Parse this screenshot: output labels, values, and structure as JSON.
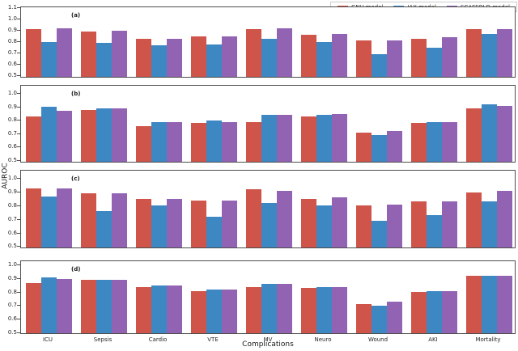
{
  "figure": {
    "xlabel": "Complications",
    "ylabel": "AUROC",
    "legend": [
      {
        "label": "GNV model",
        "color": "#cf5449"
      },
      {
        "label": "JAX model",
        "color": "#3d87c3"
      },
      {
        "label": "SCAFFOLD model",
        "color": "#9263b3"
      }
    ]
  },
  "chart_data": [
    {
      "type": "bar",
      "panel_label": "(a)",
      "categories": [
        "ICU",
        "Sepsis",
        "Cardio",
        "VTE",
        "MV",
        "Neuro",
        "Wound",
        "AKI",
        "Mortality"
      ],
      "series": [
        {
          "name": "GNV model",
          "color": "#cf5449",
          "values": [
            0.9,
            0.88,
            0.82,
            0.84,
            0.9,
            0.85,
            0.8,
            0.82,
            0.9
          ]
        },
        {
          "name": "JAX model",
          "color": "#3d87c3",
          "values": [
            0.79,
            0.78,
            0.76,
            0.77,
            0.82,
            0.79,
            0.68,
            0.74,
            0.86
          ]
        },
        {
          "name": "SCAFFOLD model",
          "color": "#9263b3",
          "values": [
            0.91,
            0.89,
            0.82,
            0.84,
            0.91,
            0.86,
            0.8,
            0.83,
            0.9
          ]
        }
      ],
      "ylabel": "AUROC",
      "yticks": [
        1.1,
        1.0,
        0.9,
        0.8,
        0.7,
        0.6,
        0.5
      ],
      "ylim": [
        0.48,
        1.11
      ],
      "grid": false,
      "legend_position": "top-right-outside"
    },
    {
      "type": "bar",
      "panel_label": "(b)",
      "categories": [
        "ICU",
        "Sepsis",
        "Cardio",
        "VTE",
        "MV",
        "Neuro",
        "Wound",
        "AKI",
        "Mortality"
      ],
      "series": [
        {
          "name": "GNV model",
          "color": "#cf5449",
          "values": [
            0.82,
            0.87,
            0.75,
            0.77,
            0.78,
            0.82,
            0.7,
            0.77,
            0.88
          ]
        },
        {
          "name": "JAX model",
          "color": "#3d87c3",
          "values": [
            0.89,
            0.88,
            0.78,
            0.79,
            0.83,
            0.83,
            0.68,
            0.78,
            0.91
          ]
        },
        {
          "name": "SCAFFOLD model",
          "color": "#9263b3",
          "values": [
            0.86,
            0.88,
            0.78,
            0.78,
            0.83,
            0.84,
            0.71,
            0.78,
            0.9
          ]
        }
      ],
      "ylabel": "AUROC",
      "yticks": [
        1.0,
        0.9,
        0.8,
        0.7,
        0.6,
        0.5
      ],
      "ylim": [
        0.482,
        1.062
      ],
      "grid": false
    },
    {
      "type": "bar",
      "panel_label": "(c)",
      "categories": [
        "ICU",
        "Sepsis",
        "Cardio",
        "VTE",
        "MV",
        "Neuro",
        "Wound",
        "AKI",
        "Mortality"
      ],
      "series": [
        {
          "name": "GNV model",
          "color": "#cf5449",
          "values": [
            0.92,
            0.88,
            0.84,
            0.83,
            0.91,
            0.84,
            0.79,
            0.82,
            0.89
          ]
        },
        {
          "name": "JAX model",
          "color": "#3d87c3",
          "values": [
            0.86,
            0.75,
            0.79,
            0.71,
            0.81,
            0.79,
            0.68,
            0.72,
            0.82
          ]
        },
        {
          "name": "SCAFFOLD model",
          "color": "#9263b3",
          "values": [
            0.92,
            0.88,
            0.84,
            0.83,
            0.9,
            0.85,
            0.8,
            0.82,
            0.9
          ]
        }
      ],
      "ylabel": "AUROC",
      "yticks": [
        1.0,
        0.9,
        0.8,
        0.7,
        0.6,
        0.5
      ],
      "ylim": [
        0.485,
        1.059
      ],
      "grid": false
    },
    {
      "type": "bar",
      "panel_label": "(d)",
      "categories": [
        "ICU",
        "Sepsis",
        "Cardio",
        "VTE",
        "MV",
        "Neuro",
        "Wound",
        "AKI",
        "Mortality"
      ],
      "series": [
        {
          "name": "GNV model",
          "color": "#cf5449",
          "values": [
            0.86,
            0.88,
            0.83,
            0.8,
            0.83,
            0.82,
            0.7,
            0.79,
            0.91
          ]
        },
        {
          "name": "JAX model",
          "color": "#3d87c3",
          "values": [
            0.9,
            0.88,
            0.84,
            0.81,
            0.85,
            0.83,
            0.69,
            0.8,
            0.91
          ]
        },
        {
          "name": "SCAFFOLD model",
          "color": "#9263b3",
          "values": [
            0.89,
            0.88,
            0.84,
            0.81,
            0.85,
            0.83,
            0.72,
            0.8,
            0.91
          ]
        }
      ],
      "xlabel": "Complications",
      "ylabel": "AUROC",
      "yticks": [
        1.0,
        0.9,
        0.8,
        0.7,
        0.6,
        0.5
      ],
      "ylim": [
        0.486,
        1.032
      ],
      "grid": false
    }
  ]
}
